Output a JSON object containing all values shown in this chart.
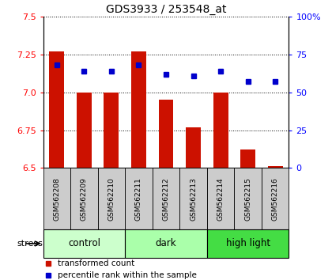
{
  "title": "GDS3933 / 253548_at",
  "samples": [
    "GSM562208",
    "GSM562209",
    "GSM562210",
    "GSM562211",
    "GSM562212",
    "GSM562213",
    "GSM562214",
    "GSM562215",
    "GSM562216"
  ],
  "red_values": [
    7.27,
    7.0,
    7.0,
    7.27,
    6.95,
    6.77,
    7.0,
    6.62,
    6.51
  ],
  "blue_values": [
    68,
    64,
    64,
    68,
    62,
    61,
    64,
    57,
    57
  ],
  "groups": [
    {
      "label": "control",
      "start": 0,
      "end": 3,
      "color": "#ccffcc"
    },
    {
      "label": "dark",
      "start": 3,
      "end": 6,
      "color": "#aaffaa"
    },
    {
      "label": "high light",
      "start": 6,
      "end": 9,
      "color": "#44dd44"
    }
  ],
  "ylim_left": [
    6.5,
    7.5
  ],
  "ylim_right": [
    0,
    100
  ],
  "yticks_left": [
    6.5,
    6.75,
    7.0,
    7.25,
    7.5
  ],
  "yticks_right": [
    0,
    25,
    50,
    75,
    100
  ],
  "bar_color": "#cc1100",
  "dot_color": "#0000cc",
  "bar_bottom": 6.5,
  "bar_width": 0.55,
  "legend_items": [
    {
      "label": "transformed count",
      "color": "#cc1100"
    },
    {
      "label": "percentile rank within the sample",
      "color": "#0000cc"
    }
  ],
  "sample_box_color": "#cccccc",
  "fig_width": 4.2,
  "fig_height": 3.54,
  "dpi": 100
}
